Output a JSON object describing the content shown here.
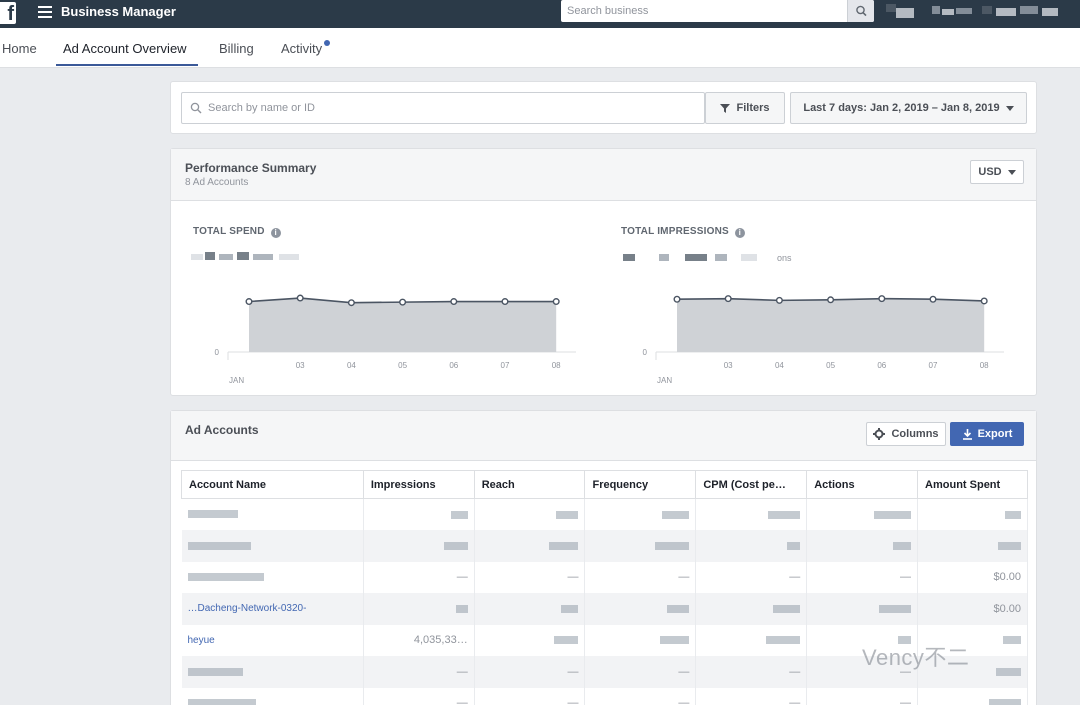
{
  "topbar": {
    "logo_glyph": "f",
    "app_title": "Business Manager",
    "search_placeholder": "Search business"
  },
  "tabs": [
    {
      "label": "Home"
    },
    {
      "label": "Ad Account Overview",
      "active": true
    },
    {
      "label": "Billing"
    },
    {
      "label": "Activity",
      "has_notification": true
    }
  ],
  "toolbar": {
    "search_placeholder": "Search by name or ID",
    "filters_label": "Filters",
    "date_range_label": "Last 7 days: Jan 2, 2019 – Jan 8, 2019"
  },
  "performance": {
    "title": "Performance Summary",
    "subtitle": "8 Ad Accounts",
    "currency": "USD",
    "spend_label": "TOTAL SPEND",
    "impressions_label": "TOTAL IMPRESSIONS",
    "impressions_suffix": "ons"
  },
  "chart_data": [
    {
      "type": "area",
      "title": "TOTAL SPEND",
      "x": [
        "02",
        "03",
        "04",
        "05",
        "06",
        "07",
        "08"
      ],
      "x_tick_labels": [
        "03",
        "04",
        "05",
        "06",
        "07",
        "08"
      ],
      "x_month_label": "JAN",
      "y_tick_labels": [
        "0"
      ],
      "values": [
        0.87,
        0.93,
        0.85,
        0.86,
        0.87,
        0.87,
        0.87
      ],
      "ylim": [
        0,
        1
      ],
      "grid": false
    },
    {
      "type": "area",
      "title": "TOTAL IMPRESSIONS",
      "x": [
        "02",
        "03",
        "04",
        "05",
        "06",
        "07",
        "08"
      ],
      "x_tick_labels": [
        "03",
        "04",
        "05",
        "06",
        "07",
        "08"
      ],
      "x_month_label": "JAN",
      "y_tick_labels": [
        "0"
      ],
      "values": [
        0.91,
        0.92,
        0.89,
        0.9,
        0.92,
        0.91,
        0.88
      ],
      "ylim": [
        0,
        1
      ],
      "grid": false
    }
  ],
  "accounts": {
    "title": "Ad Accounts",
    "columns_label": "Columns",
    "export_label": "Export",
    "headers": [
      "Account Name",
      "Impressions",
      "Reach",
      "Frequency",
      "CPM (Cost pe…",
      "Actions",
      "Amount Spent"
    ],
    "rows": [
      {
        "name": "",
        "impressions": "",
        "reach": "",
        "frequency": "",
        "cpm": "",
        "actions": "",
        "spent": ""
      },
      {
        "name": "",
        "impressions": "",
        "reach": "",
        "frequency": "",
        "cpm": "",
        "actions": "",
        "spent": ""
      },
      {
        "name": "",
        "impressions": "—",
        "reach": "—",
        "frequency": "—",
        "cpm": "—",
        "actions": "—",
        "spent": "$0.00"
      },
      {
        "name": "…Dacheng-Network-0320-",
        "impressions": "",
        "reach": "",
        "frequency": "",
        "cpm": "",
        "actions": "",
        "spent": "$0.00"
      },
      {
        "name": "heyue",
        "impressions": "4,035,33…",
        "reach": "",
        "frequency": "",
        "cpm": "",
        "actions": "",
        "spent": ""
      },
      {
        "name": "",
        "impressions": "—",
        "reach": "—",
        "frequency": "—",
        "cpm": "—",
        "actions": "—",
        "spent": ""
      },
      {
        "name": "",
        "impressions": "—",
        "reach": "—",
        "frequency": "—",
        "cpm": "—",
        "actions": "—",
        "spent": ""
      }
    ]
  },
  "watermark": "Vency不二"
}
